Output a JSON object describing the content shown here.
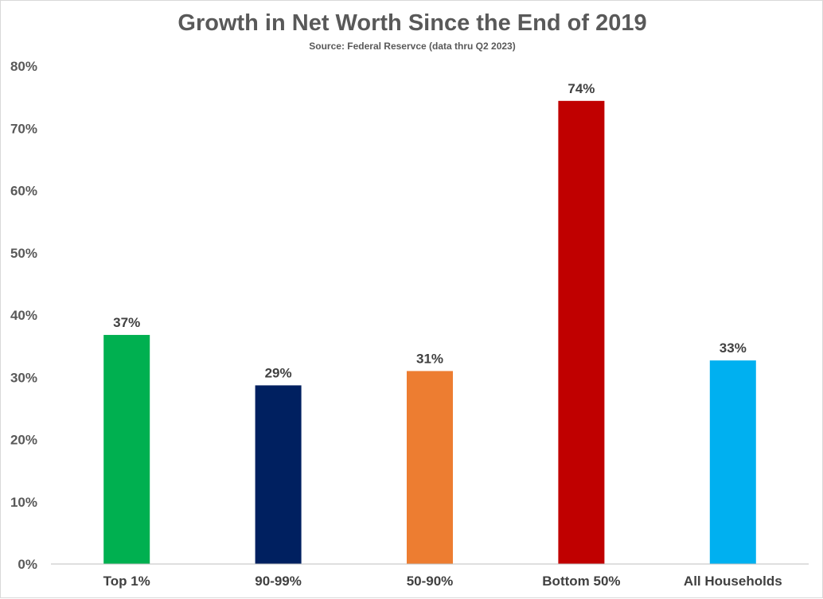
{
  "chart_data": {
    "type": "bar",
    "title": "Growth in Net Worth Since the End of 2019",
    "subtitle": "Source: Federal Reservce (data thru Q2 2023)",
    "categories": [
      "Top 1%",
      "90-99%",
      "50-90%",
      "Bottom 50%",
      "All Households"
    ],
    "values": [
      36.8,
      28.7,
      31.0,
      74.4,
      32.7
    ],
    "data_labels": [
      "37%",
      "29%",
      "31%",
      "74%",
      "33%"
    ],
    "colors": [
      "#00b050",
      "#002060",
      "#ed7d31",
      "#c00000",
      "#00b0f0"
    ],
    "ylim": [
      0,
      80
    ],
    "yticks": [
      0,
      10,
      20,
      30,
      40,
      50,
      60,
      70,
      80
    ],
    "ytick_labels": [
      "0%",
      "10%",
      "20%",
      "30%",
      "40%",
      "50%",
      "60%",
      "70%",
      "80%"
    ],
    "grid": false,
    "legend": "none",
    "xlabel": "",
    "ylabel": ""
  }
}
